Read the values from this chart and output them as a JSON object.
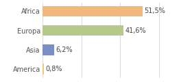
{
  "categories": [
    "America",
    "Asia",
    "Europa",
    "Africa"
  ],
  "values": [
    0.8,
    6.2,
    41.6,
    51.5
  ],
  "labels": [
    "0,8%",
    "6,2%",
    "41,6%",
    "51,5%"
  ],
  "bar_colors": [
    "#f0c878",
    "#7b8ec8",
    "#b5c98a",
    "#f0b87a"
  ],
  "background_color": "#ffffff",
  "xlim": [
    0,
    62
  ],
  "label_fontsize": 7,
  "tick_fontsize": 7
}
